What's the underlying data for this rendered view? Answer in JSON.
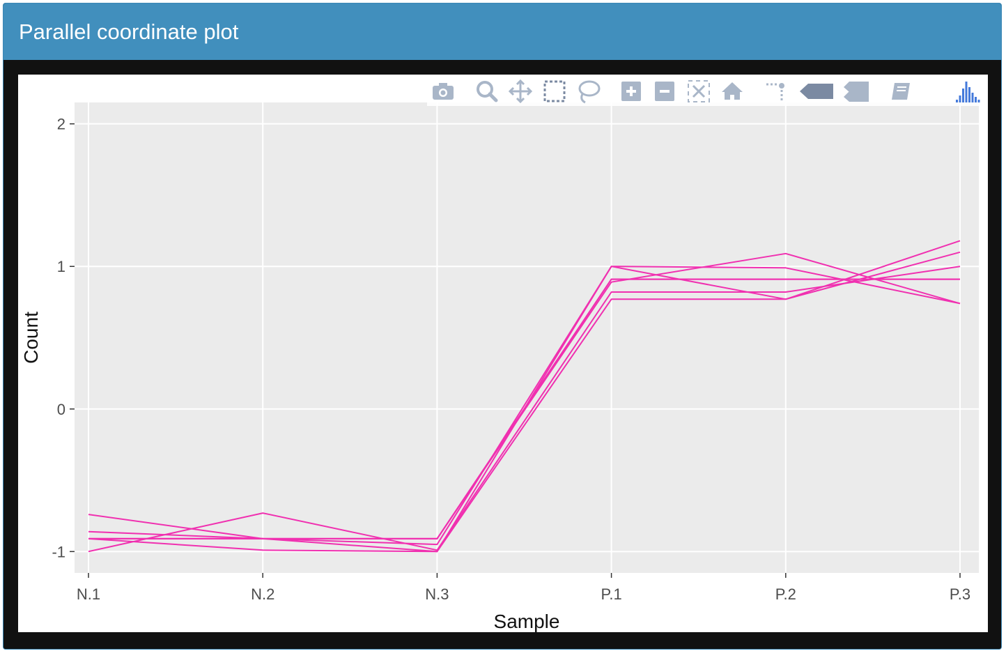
{
  "panel": {
    "title": "Parallel coordinate plot"
  },
  "modebar": {
    "buttons": [
      {
        "name": "camera-icon",
        "icon": "camera"
      },
      {
        "name": "zoom-icon",
        "icon": "magnifier"
      },
      {
        "name": "pan-icon",
        "icon": "move-arrows"
      },
      {
        "name": "box-select-icon",
        "icon": "dashed-box"
      },
      {
        "name": "lasso-select-icon",
        "icon": "lasso"
      },
      {
        "name": "zoom-in-icon",
        "icon": "plus-square"
      },
      {
        "name": "zoom-out-icon",
        "icon": "minus-square"
      },
      {
        "name": "autoscale-icon",
        "icon": "expand-box"
      },
      {
        "name": "reset-axes-icon",
        "icon": "home"
      },
      {
        "name": "spike-lines-icon",
        "icon": "spikes"
      },
      {
        "name": "hover-closest-icon",
        "icon": "tag-single"
      },
      {
        "name": "hover-compare-icon",
        "icon": "tag-double"
      },
      {
        "name": "edit-chart-icon",
        "icon": "book"
      },
      {
        "name": "plotly-logo-icon",
        "icon": "bars-logo"
      }
    ],
    "icon_color": "#a9b6c8",
    "active_color": "#7b8aa2",
    "logo_color": "#447adb"
  },
  "colors": {
    "line": "#f030b0",
    "plot_bg": "#ebebeb",
    "grid": "#ffffff"
  },
  "chart_data": {
    "type": "line",
    "title": "",
    "xlabel": "Sample",
    "ylabel": "Count",
    "categories": [
      "N.1",
      "N.2",
      "N.3",
      "P.1",
      "P.2",
      "P.3"
    ],
    "ylim": [
      -1.15,
      2.15
    ],
    "yticks": [
      -1,
      0,
      1,
      2
    ],
    "ytick_labels": [
      "-1",
      "0",
      "1",
      "2"
    ],
    "grid": true,
    "legend": "none",
    "series": [
      {
        "values": [
          -0.91,
          -0.91,
          -0.91,
          0.91,
          0.91,
          0.91
        ]
      },
      {
        "values": [
          -0.91,
          -0.91,
          -0.91,
          0.91,
          0.91,
          0.91
        ]
      },
      {
        "values": [
          -0.74,
          -0.91,
          -0.95,
          1.0,
          0.77,
          1.1
        ]
      },
      {
        "values": [
          -0.86,
          -0.91,
          -1.0,
          0.77,
          0.77,
          1.18
        ]
      },
      {
        "values": [
          -1.0,
          -0.73,
          -0.99,
          0.82,
          0.82,
          1.0
        ]
      },
      {
        "values": [
          -0.91,
          -0.99,
          -1.0,
          1.0,
          0.99,
          0.74
        ]
      },
      {
        "values": [
          -0.91,
          -0.91,
          -0.91,
          0.89,
          1.09,
          0.74
        ]
      }
    ]
  }
}
